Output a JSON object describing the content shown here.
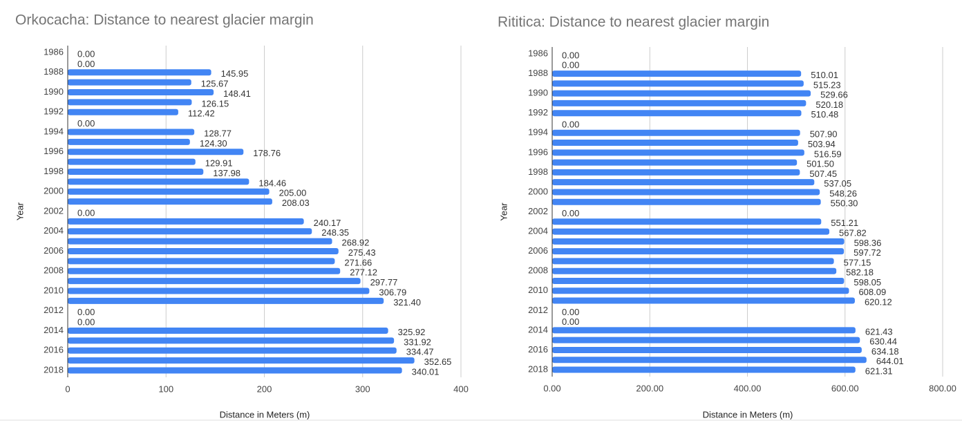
{
  "chart_data": [
    {
      "type": "bar",
      "title": "Orkocacha: Distance to nearest glacier margin",
      "x_label": "Distance in Meters (m)",
      "y_label": "Year",
      "color": "#4285f4",
      "grid": true,
      "categories": [
        "1986",
        null,
        "1988",
        null,
        "1990",
        null,
        "1992",
        null,
        "1994",
        null,
        "1996",
        null,
        "1998",
        null,
        "2000",
        null,
        "2002",
        null,
        "2004",
        null,
        "2006",
        null,
        "2008",
        null,
        "2010",
        null,
        "2012",
        null,
        "2014",
        null,
        "2016",
        null,
        "2018"
      ],
      "values": [
        0,
        0,
        145.95,
        125.67,
        148.41,
        126.15,
        112.42,
        0,
        128.77,
        124.3,
        178.76,
        129.91,
        137.98,
        184.46,
        205,
        208.03,
        0,
        240.17,
        248.35,
        268.92,
        275.43,
        271.66,
        277.12,
        297.77,
        306.79,
        321.4,
        0,
        0,
        325.92,
        331.92,
        334.47,
        352.65,
        340.01
      ],
      "value_labels": [
        "0.00",
        "0.00",
        "145.95",
        "125.67",
        "148.41",
        "126.15",
        "112.42",
        "0.00",
        "128.77",
        "124.30",
        "178.76",
        "129.91",
        "137.98",
        "184.46",
        "205.00",
        "208.03",
        "0.00",
        "240.17",
        "248.35",
        "268.92",
        "275.43",
        "271.66",
        "277.12",
        "297.77",
        "306.79",
        "321.40",
        "0.00",
        "0.00",
        "325.92",
        "331.92",
        "334.47",
        "352.65",
        "340.01"
      ],
      "xlim": [
        0,
        400
      ],
      "xticks": [
        0,
        100,
        200,
        300,
        400
      ]
    },
    {
      "type": "bar",
      "title": "Rititica: Distance to nearest glacier margin",
      "x_label": "Distance in Meters (m)",
      "y_label": "Year",
      "color": "#4285f4",
      "grid": true,
      "categories": [
        "1986",
        null,
        "1988",
        null,
        "1990",
        null,
        "1992",
        null,
        "1994",
        null,
        "1996",
        null,
        "1998",
        null,
        "2000",
        null,
        "2002",
        null,
        "2004",
        null,
        "2006",
        null,
        "2008",
        null,
        "2010",
        null,
        "2012",
        null,
        "2014",
        null,
        "2016",
        null,
        "2018"
      ],
      "values": [
        0,
        0,
        510.01,
        515.23,
        529.66,
        520.18,
        510.48,
        0,
        507.9,
        503.94,
        516.59,
        501.5,
        507.45,
        537.05,
        548.26,
        550.3,
        0,
        551.21,
        567.82,
        598.36,
        597.72,
        577.15,
        582.18,
        598.05,
        608.09,
        620.12,
        0,
        0,
        621.43,
        630.44,
        634.18,
        644.01,
        621.31
      ],
      "value_labels": [
        "0.00",
        "0.00",
        "510.01",
        "515.23",
        "529.66",
        "520.18",
        "510.48",
        "0.00",
        "507.90",
        "503.94",
        "516.59",
        "501.50",
        "507.45",
        "537.05",
        "548.26",
        "550.30",
        "0.00",
        "551.21",
        "567.82",
        "598.36",
        "597.72",
        "577.15",
        "582.18",
        "598.05",
        "608.09",
        "620.12",
        "0.00",
        "0.00",
        "621.43",
        "630.44",
        "634.18",
        "644.01",
        "621.31"
      ],
      "xlim": [
        0,
        800
      ],
      "xticks": [
        {
          "value": 0,
          "label": "0.00"
        },
        {
          "value": 200,
          "label": "200.00"
        },
        {
          "value": 400,
          "label": "400.00"
        },
        {
          "value": 600,
          "label": "600.00"
        },
        {
          "value": 800,
          "label": "800.00"
        }
      ]
    }
  ]
}
